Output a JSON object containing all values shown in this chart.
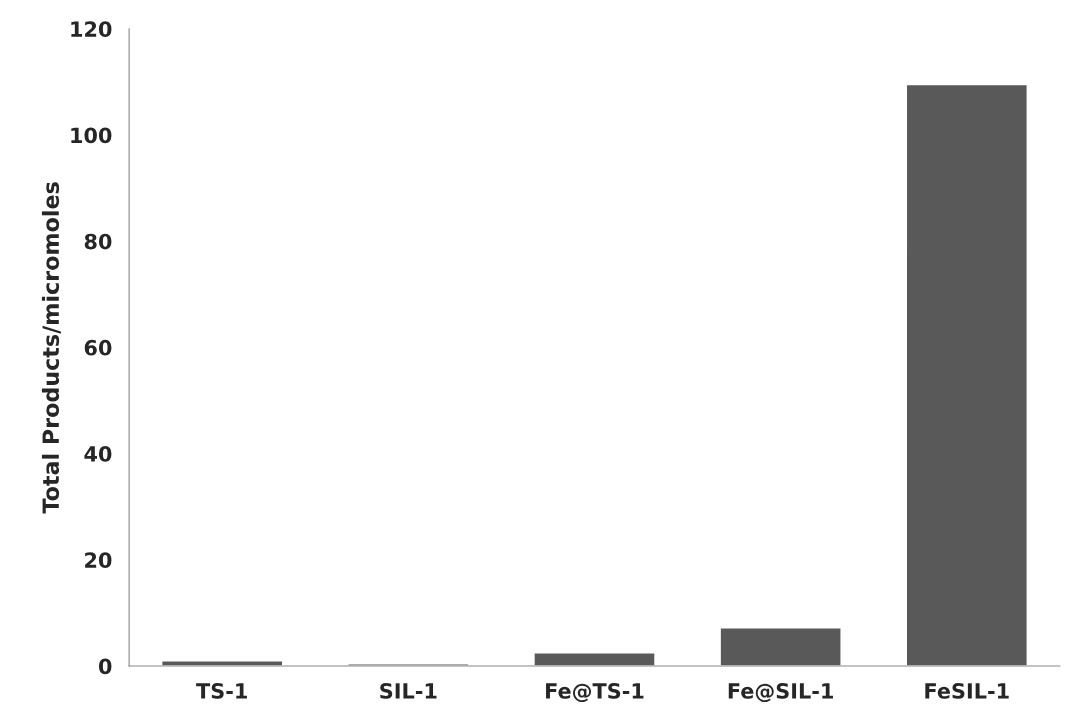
{
  "chart_data": {
    "type": "bar",
    "ylabel": "Total Products/micromoles",
    "categories": [
      "TS-1",
      "SIL-1",
      "Fe@TS-1",
      "Fe@SIL-1",
      "FeSIL-1"
    ],
    "values": [
      1.0,
      0.4,
      2.5,
      7.2,
      109.5
    ],
    "color": "#595959",
    "ylim": [
      0,
      120
    ],
    "yticks": [
      0,
      20,
      40,
      60,
      80,
      100,
      120
    ],
    "grid": false,
    "legend": false
  }
}
